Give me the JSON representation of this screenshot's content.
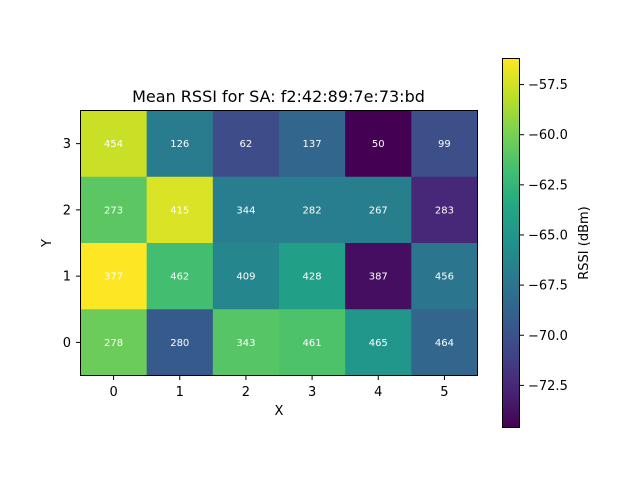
{
  "chart_data": {
    "type": "heatmap",
    "title": "Mean RSSI for SA: f2:42:89:7e:73:bd",
    "xlabel": "X",
    "ylabel": "Y",
    "x_ticks": [
      "0",
      "1",
      "2",
      "3",
      "4",
      "5"
    ],
    "y_ticks": [
      "0",
      "1",
      "2",
      "3"
    ],
    "colorbar": {
      "label": "RSSI (dBm)",
      "range": [
        -74.6,
        -56.2
      ],
      "ticks": [
        -57.5,
        -60.0,
        -62.5,
        -65.0,
        -67.5,
        -70.0,
        -72.5
      ],
      "tick_labels": [
        "−57.5",
        "−60.0",
        "−62.5",
        "−65.0",
        "−67.5",
        "−70.0",
        "−72.5"
      ],
      "colormap": "viridis"
    },
    "rows": [
      {
        "y": "3",
        "rssi": [
          -57.7,
          -67.0,
          -70.4,
          -68.6,
          -74.6,
          -70.2
        ],
        "counts": [
          "454",
          "126",
          "62",
          "137",
          "50",
          "99"
        ]
      },
      {
        "y": "2",
        "rssi": [
          -60.9,
          -57.2,
          -66.9,
          -66.8,
          -66.7,
          -72.6
        ],
        "counts": [
          "273",
          "415",
          "344",
          "282",
          "267",
          "283"
        ]
      },
      {
        "y": "1",
        "rssi": [
          -56.2,
          -61.8,
          -66.2,
          -64.2,
          -73.9,
          -67.4
        ],
        "counts": [
          "377",
          "462",
          "409",
          "428",
          "387",
          "456"
        ]
      },
      {
        "y": "0",
        "rssi": [
          -60.4,
          -69.4,
          -61.1,
          -61.4,
          -65.0,
          -68.6
        ],
        "counts": [
          "278",
          "280",
          "343",
          "461",
          "465",
          "464"
        ]
      }
    ]
  }
}
